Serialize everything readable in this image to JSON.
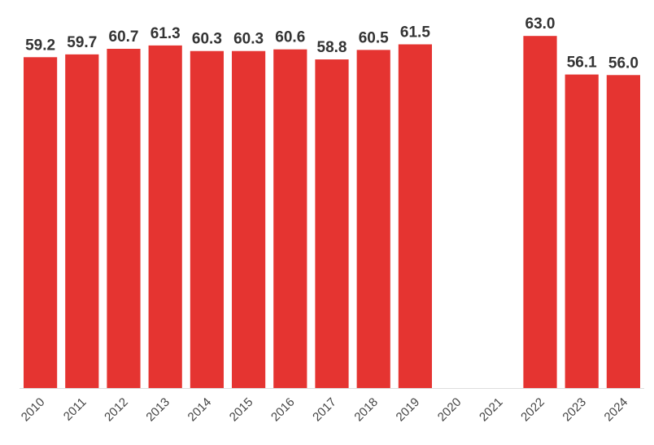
{
  "chart_data": {
    "type": "bar",
    "categories": [
      "2010",
      "2011",
      "2012",
      "2013",
      "2014",
      "2015",
      "2016",
      "2017",
      "2018",
      "2019",
      "2020",
      "2021",
      "2022",
      "2023",
      "2024"
    ],
    "values": [
      59.2,
      59.7,
      60.7,
      61.3,
      60.3,
      60.3,
      60.6,
      58.8,
      60.5,
      61.5,
      null,
      null,
      63.0,
      56.1,
      56.0
    ],
    "value_labels": [
      "59.2",
      "59.7",
      "60.7",
      "61.3",
      "60.3",
      "60.3",
      "60.6",
      "58.8",
      "60.5",
      "61.5",
      "",
      "",
      "63.0",
      "56.1",
      "56.0"
    ],
    "title": "",
    "xlabel": "",
    "ylabel": "",
    "ylim": [
      0,
      66
    ],
    "grid": false,
    "legend": "none",
    "bar_color": "#e53431"
  }
}
